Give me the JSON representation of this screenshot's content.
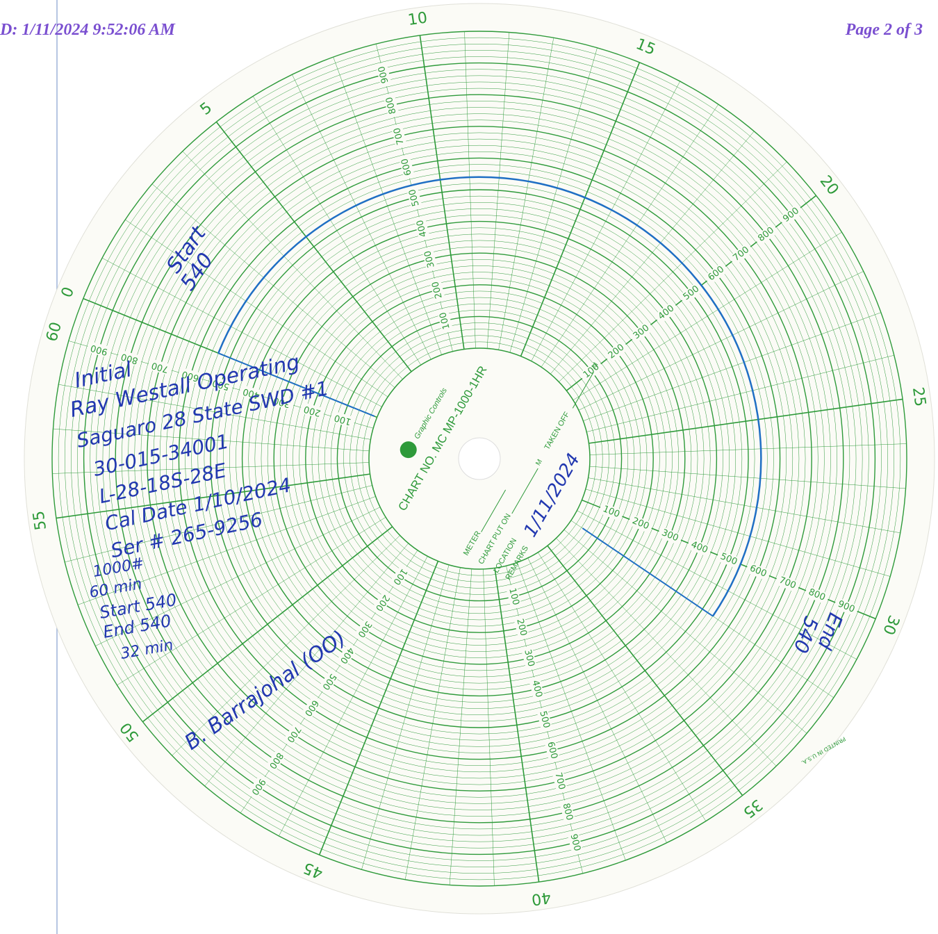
{
  "header": {
    "left": "D: 1/11/2024 9:52:06 AM",
    "right": "Page 2 of 3"
  },
  "chart": {
    "minute_labels": [
      0,
      5,
      10,
      15,
      20,
      25,
      30,
      35,
      40,
      45,
      50,
      55
    ],
    "end_label": 60,
    "pressure_labels": [
      100,
      200,
      300,
      400,
      500,
      600,
      700,
      800,
      900
    ],
    "label_minutes": [
      9,
      20,
      30,
      39,
      47,
      59
    ],
    "trace": {
      "start_minute": 0,
      "end_minute": 32,
      "value": 540
    }
  },
  "hub": {
    "maker": "Graphic Controls",
    "chart_no": "CHART NO. MC MP-1000-1HR",
    "meter": "METER",
    "chart_put_on": "CHART PUT ON",
    "m1": "M",
    "location": "LOCATION",
    "remarks": "REMARKS",
    "taken_off": "TAKEN OFF",
    "m2": "M"
  },
  "handwriting": {
    "start_top": [
      "Start",
      "540"
    ],
    "notes": [
      "Initial",
      "Ray Westall Operating",
      "Saguaro 28 State SWD #1",
      "30-015-34001",
      "L-28-18S-28E",
      "Cal Date 1/10/2024",
      "Ser # 265-9256",
      "1000#",
      "60 min",
      "Start 540",
      "End 540",
      "32 min"
    ],
    "remarks_date": "1/11/2024",
    "end_right": [
      "End",
      "540"
    ],
    "signature": "B. Barrajohal (OO)"
  },
  "printed": "PRINTED IN U.S.A."
}
